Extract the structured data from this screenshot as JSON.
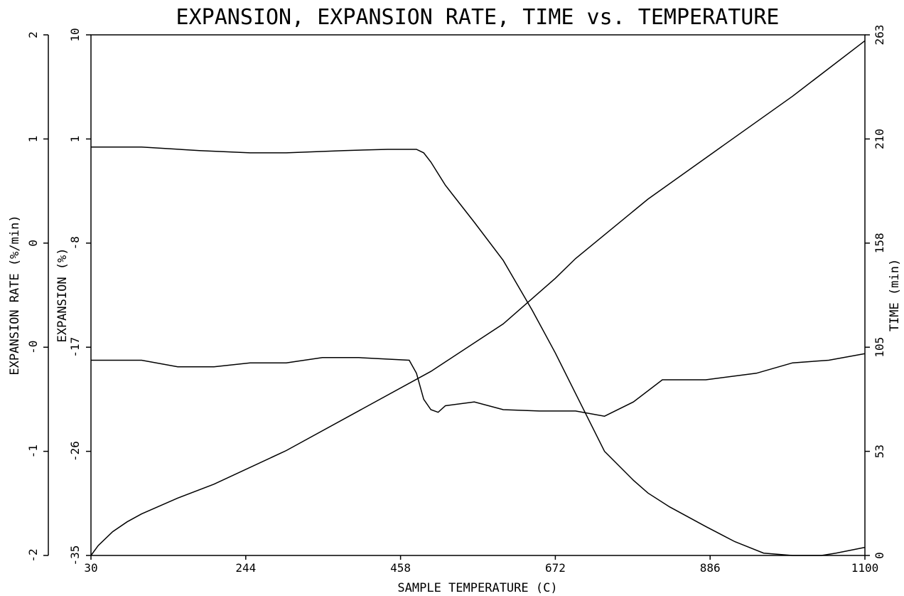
{
  "chart_data": {
    "type": "line",
    "title": "EXPANSION, EXPANSION RATE, TIME vs. TEMPERATURE",
    "xlabel": "SAMPLE TEMPERATURE (C)",
    "xlim": [
      30,
      1100
    ],
    "x_ticks": [
      "30",
      "244",
      "458",
      "672",
      "886",
      "1100"
    ],
    "axes": {
      "rate": {
        "label": "EXPANSION RATE (%/min)",
        "lim": [
          -2,
          2
        ],
        "ticks": [
          2,
          1,
          0,
          0,
          -1,
          -2
        ],
        "tick_labels": [
          "2",
          "1",
          "0",
          "-0",
          "-1",
          "-2"
        ]
      },
      "expansion": {
        "label": "EXPANSION (%)",
        "lim": [
          -35,
          10
        ],
        "tick_labels": [
          "10",
          "1",
          "-8",
          "-17",
          "-26",
          "-35"
        ]
      },
      "time": {
        "label": "TIME (min)",
        "lim": [
          0,
          263
        ],
        "tick_labels": [
          "263",
          "210",
          "158",
          "105",
          "53",
          "0"
        ]
      }
    },
    "grid": false,
    "series": [
      {
        "axis": "expansion",
        "x": [
          30,
          100,
          180,
          250,
          300,
          380,
          440,
          480,
          490,
          500,
          520,
          560,
          600,
          640,
          672,
          700,
          740,
          780,
          800,
          830,
          880,
          920,
          960,
          1000,
          1040,
          1060,
          1100
        ],
        "values": [
          0.3,
          0.3,
          0.0,
          -0.2,
          -0.2,
          0.0,
          0.1,
          0.1,
          -0.2,
          -1.0,
          -3.0,
          -6.2,
          -9.5,
          -13.8,
          -17.5,
          -21.0,
          -26.0,
          -28.5,
          -29.6,
          -30.8,
          -32.5,
          -33.8,
          -34.8,
          -35.0,
          -35.0,
          -34.8,
          -34.3
        ]
      },
      {
        "axis": "rate",
        "x": [
          30,
          100,
          150,
          200,
          250,
          300,
          350,
          400,
          470,
          480,
          490,
          500,
          510,
          520,
          560,
          600,
          650,
          700,
          740,
          780,
          820,
          880,
          950,
          1000,
          1050,
          1100
        ],
        "values": [
          -0.5,
          -0.5,
          -0.55,
          -0.55,
          -0.52,
          -0.52,
          -0.48,
          -0.48,
          -0.5,
          -0.6,
          -0.8,
          -0.88,
          -0.9,
          -0.85,
          -0.82,
          -0.88,
          -0.89,
          -0.89,
          -0.93,
          -0.82,
          -0.65,
          -0.65,
          -0.6,
          -0.52,
          -0.5,
          -0.45
        ]
      },
      {
        "axis": "time",
        "x": [
          30,
          40,
          60,
          80,
          100,
          150,
          200,
          300,
          400,
          500,
          600,
          672,
          700,
          800,
          900,
          1000,
          1100
        ],
        "values": [
          0,
          5,
          12,
          17,
          21,
          29,
          36,
          53,
          73,
          93,
          117,
          140,
          150,
          180,
          206,
          232,
          260
        ]
      }
    ]
  }
}
